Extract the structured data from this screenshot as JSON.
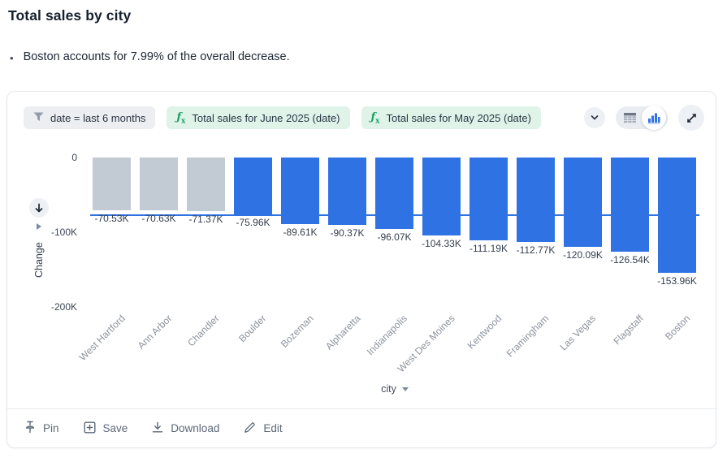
{
  "page": {
    "title": "Total sales by city",
    "insight_bullet": "Boston accounts for 7.99% of the overall decrease."
  },
  "card": {
    "chips": [
      {
        "type": "filter",
        "icon": "filter-icon",
        "label": "date = last 6 months"
      },
      {
        "type": "formula",
        "icon": "formula-icon",
        "label": "Total sales for June 2025 (date)"
      },
      {
        "type": "formula",
        "icon": "formula-icon",
        "label": "Total sales for May 2025 (date)"
      }
    ],
    "view_toggle": {
      "options": [
        "table-view",
        "chart-view"
      ],
      "selected": "chart-view"
    },
    "footer_actions": [
      {
        "icon": "pin-icon",
        "label": "Pin"
      },
      {
        "icon": "save-icon",
        "label": "Save"
      },
      {
        "icon": "download-icon",
        "label": "Download"
      },
      {
        "icon": "edit-icon",
        "label": "Edit"
      }
    ]
  },
  "chart_data": {
    "type": "bar",
    "title": "Total sales by city",
    "xlabel": "city",
    "ylabel": "Change",
    "categories": [
      "West Hartford",
      "Ann Arbor",
      "Chandler",
      "Boulder",
      "Bozeman",
      "Alpharetta",
      "Indianapolis",
      "West Des Moines",
      "Kentwood",
      "Framingham",
      "Las Vegas",
      "Flagstaff",
      "Boston"
    ],
    "values": [
      -70530,
      -70630,
      -71370,
      -75960,
      -89610,
      -90370,
      -96070,
      -104330,
      -111190,
      -112770,
      -120090,
      -126540,
      -153960
    ],
    "value_labels": [
      "-70.53K",
      "-70.63K",
      "-71.37K",
      "-75.96K",
      "-89.61K",
      "-90.37K",
      "-96.07K",
      "-104.33K",
      "-111.19K",
      "-112.77K",
      "-120.09K",
      "-126.54K",
      "-153.96K"
    ],
    "bar_colors": [
      "#c2cad3",
      "#c2cad3",
      "#c2cad3",
      "#2f72e4",
      "#2f72e4",
      "#2f72e4",
      "#2f72e4",
      "#2f72e4",
      "#2f72e4",
      "#2f72e4",
      "#2f72e4",
      "#2f72e4",
      "#2f72e4"
    ],
    "yticks": [
      {
        "value": 0,
        "label": "0"
      },
      {
        "value": -100000,
        "label": "-100K"
      },
      {
        "value": -200000,
        "label": "-200K"
      }
    ],
    "ylim": [
      -220000,
      0
    ],
    "reference_line": {
      "value": -76500,
      "color": "#2f72e4"
    },
    "grid": false,
    "legend": false,
    "colors": {
      "bar_blue": "#2f72e4",
      "bar_gray": "#c2cad3",
      "chip_green_bg": "#dff3e9",
      "chip_gray_bg": "#eceef1",
      "formula_green": "#1ba05f"
    }
  }
}
